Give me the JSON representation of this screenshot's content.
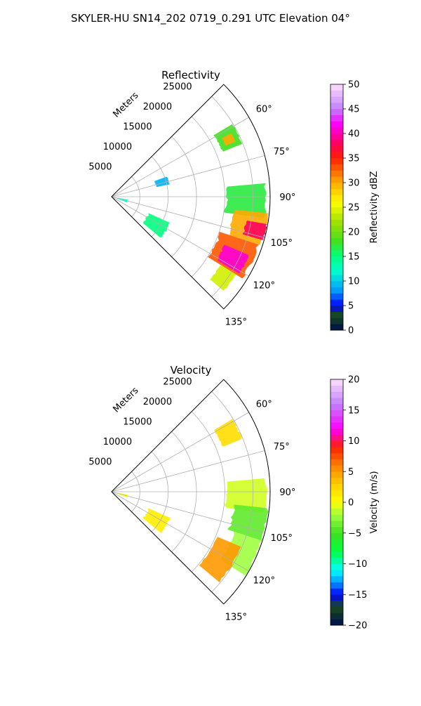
{
  "suptitle": "SKYLER-HU  SN14_202  0719_0.291 UTC Elevation 04°",
  "chart_data": [
    {
      "type": "heatmap",
      "projection": "polar-sector",
      "title": "Reflectivity",
      "radial_label": "Meters",
      "range_ticks": [
        5000,
        10000,
        15000,
        20000,
        25000
      ],
      "range_tick_labels": [
        "5000",
        "10000",
        "15000",
        "20000",
        "25000"
      ],
      "rmax": 28000,
      "azimuth_ticks": [
        60,
        75,
        90,
        105,
        120,
        135
      ],
      "azimuth_tick_labels": [
        "60°",
        "75°",
        "90°",
        "105°",
        "120°",
        "135°"
      ],
      "azimuth_range": [
        45,
        135
      ],
      "colorbar": {
        "label": "Reflectivity dBZ",
        "min": 0,
        "max": 50,
        "ticks": [
          0,
          5,
          10,
          15,
          20,
          25,
          30,
          35,
          40,
          45,
          50
        ],
        "tick_labels": [
          "0",
          "5",
          "10",
          "15",
          "20",
          "25",
          "30",
          "35",
          "40",
          "45",
          "50"
        ],
        "stops": [
          {
            "v": 0,
            "c": "#000d4d"
          },
          {
            "v": 3,
            "c": "#1a4d1a"
          },
          {
            "v": 5,
            "c": "#0000ff"
          },
          {
            "v": 8,
            "c": "#0099ff"
          },
          {
            "v": 12,
            "c": "#00ffcc"
          },
          {
            "v": 15,
            "c": "#00ff80"
          },
          {
            "v": 18,
            "c": "#40e020"
          },
          {
            "v": 22,
            "c": "#a0e000"
          },
          {
            "v": 26,
            "c": "#ffff00"
          },
          {
            "v": 30,
            "c": "#ffaa00"
          },
          {
            "v": 35,
            "c": "#ff2000"
          },
          {
            "v": 38,
            "c": "#ff0060"
          },
          {
            "v": 42,
            "c": "#ff00ff"
          },
          {
            "v": 45,
            "c": "#c080ff"
          },
          {
            "v": 50,
            "c": "#ffe0ff"
          }
        ]
      },
      "echo_regions": [
        {
          "az": [
            59,
            68
          ],
          "r": [
            21000,
            25000
          ],
          "value": 18
        },
        {
          "az": [
            62,
            66
          ],
          "r": [
            22000,
            24000
          ],
          "value": 30
        },
        {
          "az": [
            85,
            98
          ],
          "r": [
            20000,
            27500
          ],
          "value": 17
        },
        {
          "az": [
            96,
            108
          ],
          "r": [
            21500,
            28000
          ],
          "value": 30
        },
        {
          "az": [
            100,
            106
          ],
          "r": [
            24000,
            28000
          ],
          "value": 38
        },
        {
          "az": [
            108,
            122
          ],
          "r": [
            20000,
            27500
          ],
          "value": 33
        },
        {
          "az": [
            113,
            121
          ],
          "r": [
            21500,
            26500
          ],
          "value": 41
        },
        {
          "az": [
            122,
            130
          ],
          "r": [
            22500,
            26000
          ],
          "value": 24
        },
        {
          "az": [
            114,
            130
          ],
          "r": [
            7000,
            11500
          ],
          "value": 15
        },
        {
          "az": [
            100,
            110
          ],
          "r": [
            1000,
            3000
          ],
          "value": 12
        },
        {
          "az": [
            70,
            78
          ],
          "r": [
            8000,
            10500
          ],
          "value": 9
        }
      ]
    },
    {
      "type": "heatmap",
      "projection": "polar-sector",
      "title": "Velocity",
      "radial_label": "Meters",
      "range_ticks": [
        5000,
        10000,
        15000,
        20000,
        25000
      ],
      "range_tick_labels": [
        "5000",
        "10000",
        "15000",
        "20000",
        "25000"
      ],
      "rmax": 28000,
      "azimuth_ticks": [
        60,
        75,
        90,
        105,
        120,
        135
      ],
      "azimuth_tick_labels": [
        "60°",
        "75°",
        "90°",
        "105°",
        "120°",
        "135°"
      ],
      "azimuth_range": [
        45,
        135
      ],
      "colorbar": {
        "label": "Velocity (m/s)",
        "min": -20,
        "max": 20,
        "ticks": [
          -20,
          -15,
          -10,
          -5,
          0,
          5,
          10,
          15,
          20
        ],
        "tick_labels": [
          "−20",
          "−15",
          "−10",
          "−5",
          "0",
          "5",
          "10",
          "15",
          "20"
        ],
        "stops": [
          {
            "v": -20,
            "c": "#000d4d"
          },
          {
            "v": -17,
            "c": "#1a4d1a"
          },
          {
            "v": -15,
            "c": "#0000ff"
          },
          {
            "v": -13,
            "c": "#0099ff"
          },
          {
            "v": -11,
            "c": "#00ffff"
          },
          {
            "v": -8,
            "c": "#00ff40"
          },
          {
            "v": -5,
            "c": "#40e020"
          },
          {
            "v": -2,
            "c": "#a0ff40"
          },
          {
            "v": 0,
            "c": "#ffff00"
          },
          {
            "v": 3,
            "c": "#ffcc00"
          },
          {
            "v": 6,
            "c": "#ff8000"
          },
          {
            "v": 9,
            "c": "#ff2000"
          },
          {
            "v": 12,
            "c": "#ff00ff"
          },
          {
            "v": 16,
            "c": "#c080ff"
          },
          {
            "v": 20,
            "c": "#ffe0ff"
          }
        ]
      },
      "echo_regions": [
        {
          "az": [
            59,
            68
          ],
          "r": [
            21000,
            25000
          ],
          "value": 2
        },
        {
          "az": [
            85,
            98
          ],
          "r": [
            20000,
            27500
          ],
          "value": -1
        },
        {
          "az": [
            96,
            108
          ],
          "r": [
            21500,
            28000
          ],
          "value": -4
        },
        {
          "az": [
            108,
            122
          ],
          "r": [
            22500,
            28000
          ],
          "value": -2
        },
        {
          "az": [
            113,
            130
          ],
          "r": [
            20000,
            25000
          ],
          "value": 5
        },
        {
          "az": [
            114,
            130
          ],
          "r": [
            7000,
            11500
          ],
          "value": 1
        },
        {
          "az": [
            100,
            110
          ],
          "r": [
            1000,
            3000
          ],
          "value": 0
        }
      ]
    }
  ]
}
